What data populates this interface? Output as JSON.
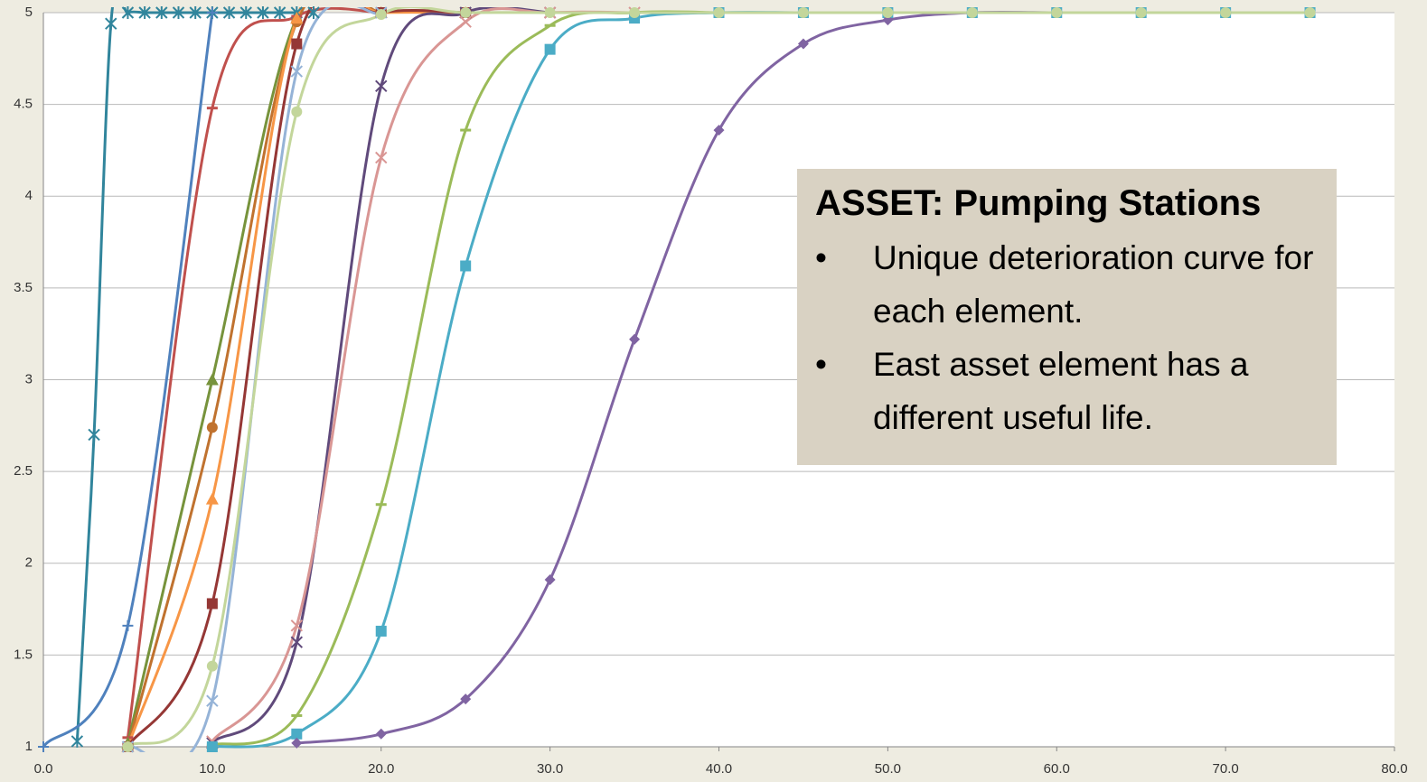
{
  "chart_data": {
    "type": "line",
    "smooth": true,
    "grid": true,
    "xlim": [
      0,
      80
    ],
    "xticks": [
      {
        "value": 0,
        "label": "0.0"
      },
      {
        "value": 10,
        "label": "10.0"
      },
      {
        "value": 20,
        "label": "20.0"
      },
      {
        "value": 30,
        "label": "30.0"
      },
      {
        "value": 40,
        "label": "40.0"
      },
      {
        "value": 50,
        "label": "50.0"
      },
      {
        "value": 60,
        "label": "60.0"
      },
      {
        "value": 70,
        "label": "70.0"
      },
      {
        "value": 80,
        "label": "80.0"
      }
    ],
    "ylim": [
      1,
      5
    ],
    "yticks": [
      1,
      1.5,
      2,
      2.5,
      3,
      3.5,
      4,
      4.5,
      5
    ],
    "annotation": {
      "title": "ASSET: Pumping Stations",
      "bullets": [
        "Unique deterioration curve for each element.",
        "East asset element has a different useful life."
      ]
    },
    "series": [
      {
        "color": "#31859c",
        "marker": "asterisk",
        "x": [
          2,
          3,
          4,
          5,
          6,
          7,
          8,
          9,
          10,
          11,
          12,
          13,
          14,
          15,
          16
        ],
        "values": [
          1.03,
          2.7,
          4.94,
          5,
          5,
          5,
          5,
          5,
          5,
          5,
          5,
          5,
          5,
          5,
          5
        ]
      },
      {
        "color": "#4f81bd",
        "marker": "plus",
        "x": [
          0,
          5,
          10
        ],
        "values": [
          1,
          1.66,
          5
        ]
      },
      {
        "color": "#c0504d",
        "marker": "dash",
        "x": [
          5,
          10,
          15,
          20
        ],
        "values": [
          1.05,
          4.48,
          4.98,
          5
        ]
      },
      {
        "color": "#77933c",
        "marker": "triangle",
        "x": [
          5,
          10,
          15,
          20
        ],
        "values": [
          1.02,
          3,
          4.97,
          5
        ]
      },
      {
        "color": "#c0722f",
        "marker": "circle",
        "x": [
          5,
          10,
          15,
          20
        ],
        "values": [
          1,
          2.74,
          4.95,
          5
        ]
      },
      {
        "color": "#f79646",
        "marker": "triangle",
        "x": [
          5,
          10,
          15,
          20,
          25
        ],
        "values": [
          1,
          2.35,
          4.97,
          5,
          5
        ]
      },
      {
        "color": "#953735",
        "marker": "square",
        "x": [
          5,
          10,
          15,
          20,
          25
        ],
        "values": [
          1,
          1.78,
          4.83,
          5,
          5
        ]
      },
      {
        "color": "#95b3d7",
        "marker": "x",
        "x": [
          5,
          10,
          15,
          20
        ],
        "values": [
          1,
          1.25,
          4.68,
          5
        ]
      },
      {
        "color": "#604a7b",
        "marker": "x",
        "x": [
          10,
          15,
          20,
          25,
          30
        ],
        "values": [
          1.02,
          1.57,
          4.6,
          5,
          5
        ]
      },
      {
        "color": "#d99694",
        "marker": "x",
        "x": [
          10,
          15,
          20,
          25,
          30,
          35
        ],
        "values": [
          1.03,
          1.66,
          4.21,
          4.95,
          5,
          5
        ]
      },
      {
        "color": "#9bbb59",
        "marker": "dash",
        "x": [
          10,
          15,
          20,
          25,
          30,
          35,
          40
        ],
        "values": [
          1.01,
          1.17,
          2.32,
          4.36,
          4.93,
          5,
          5
        ]
      },
      {
        "color": "#4bacc6",
        "marker": "square",
        "x": [
          10,
          15,
          20,
          25,
          30,
          35,
          40,
          45,
          50,
          55,
          60,
          65,
          70,
          75
        ],
        "values": [
          1,
          1.07,
          1.63,
          3.62,
          4.8,
          4.97,
          5,
          5,
          5,
          5,
          5,
          5,
          5,
          5
        ]
      },
      {
        "color": "#8064a2",
        "marker": "diamond",
        "x": [
          15,
          20,
          25,
          30,
          35,
          40,
          45,
          50,
          55,
          60,
          65,
          70,
          75
        ],
        "values": [
          1.02,
          1.07,
          1.26,
          1.91,
          3.22,
          4.36,
          4.83,
          4.96,
          5,
          5,
          5,
          5,
          5
        ]
      },
      {
        "color": "#c3d69b",
        "marker": "circle",
        "x": [
          5,
          10,
          15,
          20,
          25,
          30,
          35,
          40,
          45,
          50,
          55,
          60,
          65,
          70,
          75
        ],
        "values": [
          1,
          1.44,
          4.46,
          4.99,
          5,
          5,
          5,
          5,
          5,
          5,
          5,
          5,
          5,
          5,
          5
        ]
      }
    ]
  }
}
